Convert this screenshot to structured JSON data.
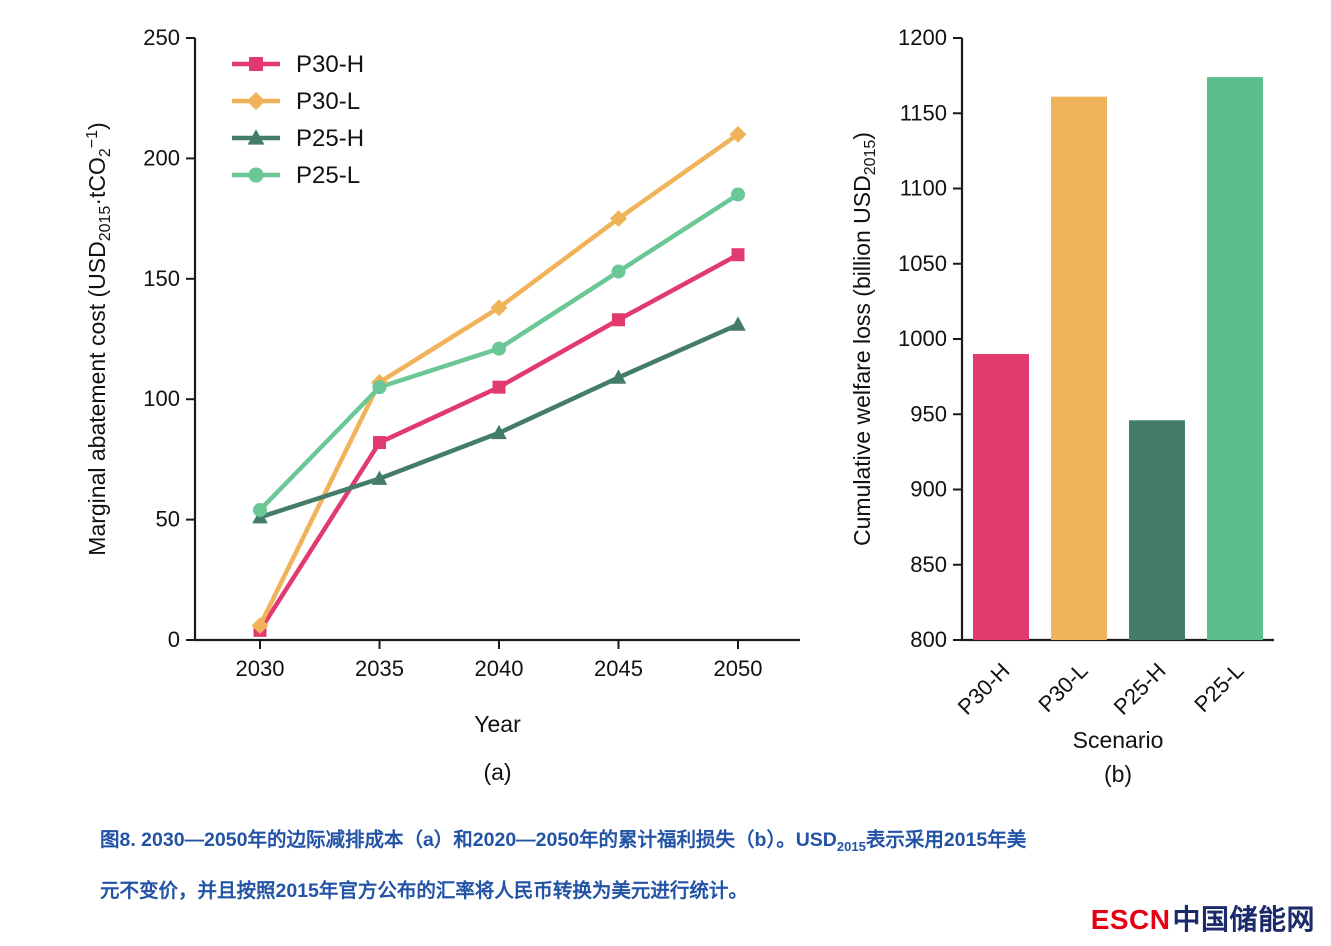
{
  "chart_data": [
    {
      "id": "a",
      "type": "line",
      "panel_label": "(a)",
      "xlabel": "Year",
      "ylabel_parts": [
        {
          "t": "Marginal abatement cost (USD"
        },
        {
          "t": "2015",
          "sub": true
        },
        {
          "t": "·tCO"
        },
        {
          "t": "2",
          "sub": true
        },
        {
          "t": "−1",
          "sup": true
        },
        {
          "t": ")"
        }
      ],
      "x": [
        2030,
        2035,
        2040,
        2045,
        2050
      ],
      "ylim": [
        0,
        250
      ],
      "yticks": [
        0,
        50,
        100,
        150,
        200,
        250
      ],
      "grid": false,
      "legend_position": "top-left",
      "series": [
        {
          "name": "P30-H",
          "color": "#e23a6e",
          "marker": "square",
          "values": [
            4,
            82,
            105,
            133,
            160
          ]
        },
        {
          "name": "P30-L",
          "color": "#f0b35a",
          "marker": "diamond",
          "values": [
            6,
            107,
            138,
            175,
            210
          ]
        },
        {
          "name": "P25-H",
          "color": "#447c6c",
          "marker": "triangle",
          "values": [
            51,
            67,
            86,
            109,
            131
          ]
        },
        {
          "name": "P25-L",
          "color": "#6bc795",
          "marker": "circle",
          "values": [
            54,
            105,
            121,
            153,
            185
          ]
        }
      ]
    },
    {
      "id": "b",
      "type": "bar",
      "panel_label": "(b)",
      "xlabel": "Scenario",
      "ylabel_parts": [
        {
          "t": "Cumulative welfare loss (billion USD"
        },
        {
          "t": "2015",
          "sub": true
        },
        {
          "t": ")"
        }
      ],
      "categories": [
        "P30-H",
        "P30-L",
        "P25-H",
        "P25-L"
      ],
      "values": [
        990,
        1161,
        946,
        1174
      ],
      "colors": [
        "#e23a6e",
        "#f0b35a",
        "#447c6c",
        "#5cbd8d"
      ],
      "ylim": [
        800,
        1200
      ],
      "yticks": [
        800,
        850,
        900,
        950,
        1000,
        1050,
        1100,
        1150,
        1200
      ],
      "grid": false
    }
  ],
  "caption": {
    "line1_pre": "图8. 2030—2050年的边际减排成本（a）和2020—2050年的累计福利损失（b）。USD",
    "line1_sub": "2015",
    "line1_post": "表示采用2015年美",
    "line2": "元不变价，并且按照2015年官方公布的汇率将人民币转换为美元进行统计。"
  },
  "logo": {
    "escn": "ESCN",
    "chinese": "中国储能网"
  },
  "style": {
    "axis_color": "#1a1a1a",
    "text_color": "#111111",
    "caption_color": "#2353a4",
    "logo_red": "#e60012",
    "logo_blue": "#1b2a6b"
  }
}
